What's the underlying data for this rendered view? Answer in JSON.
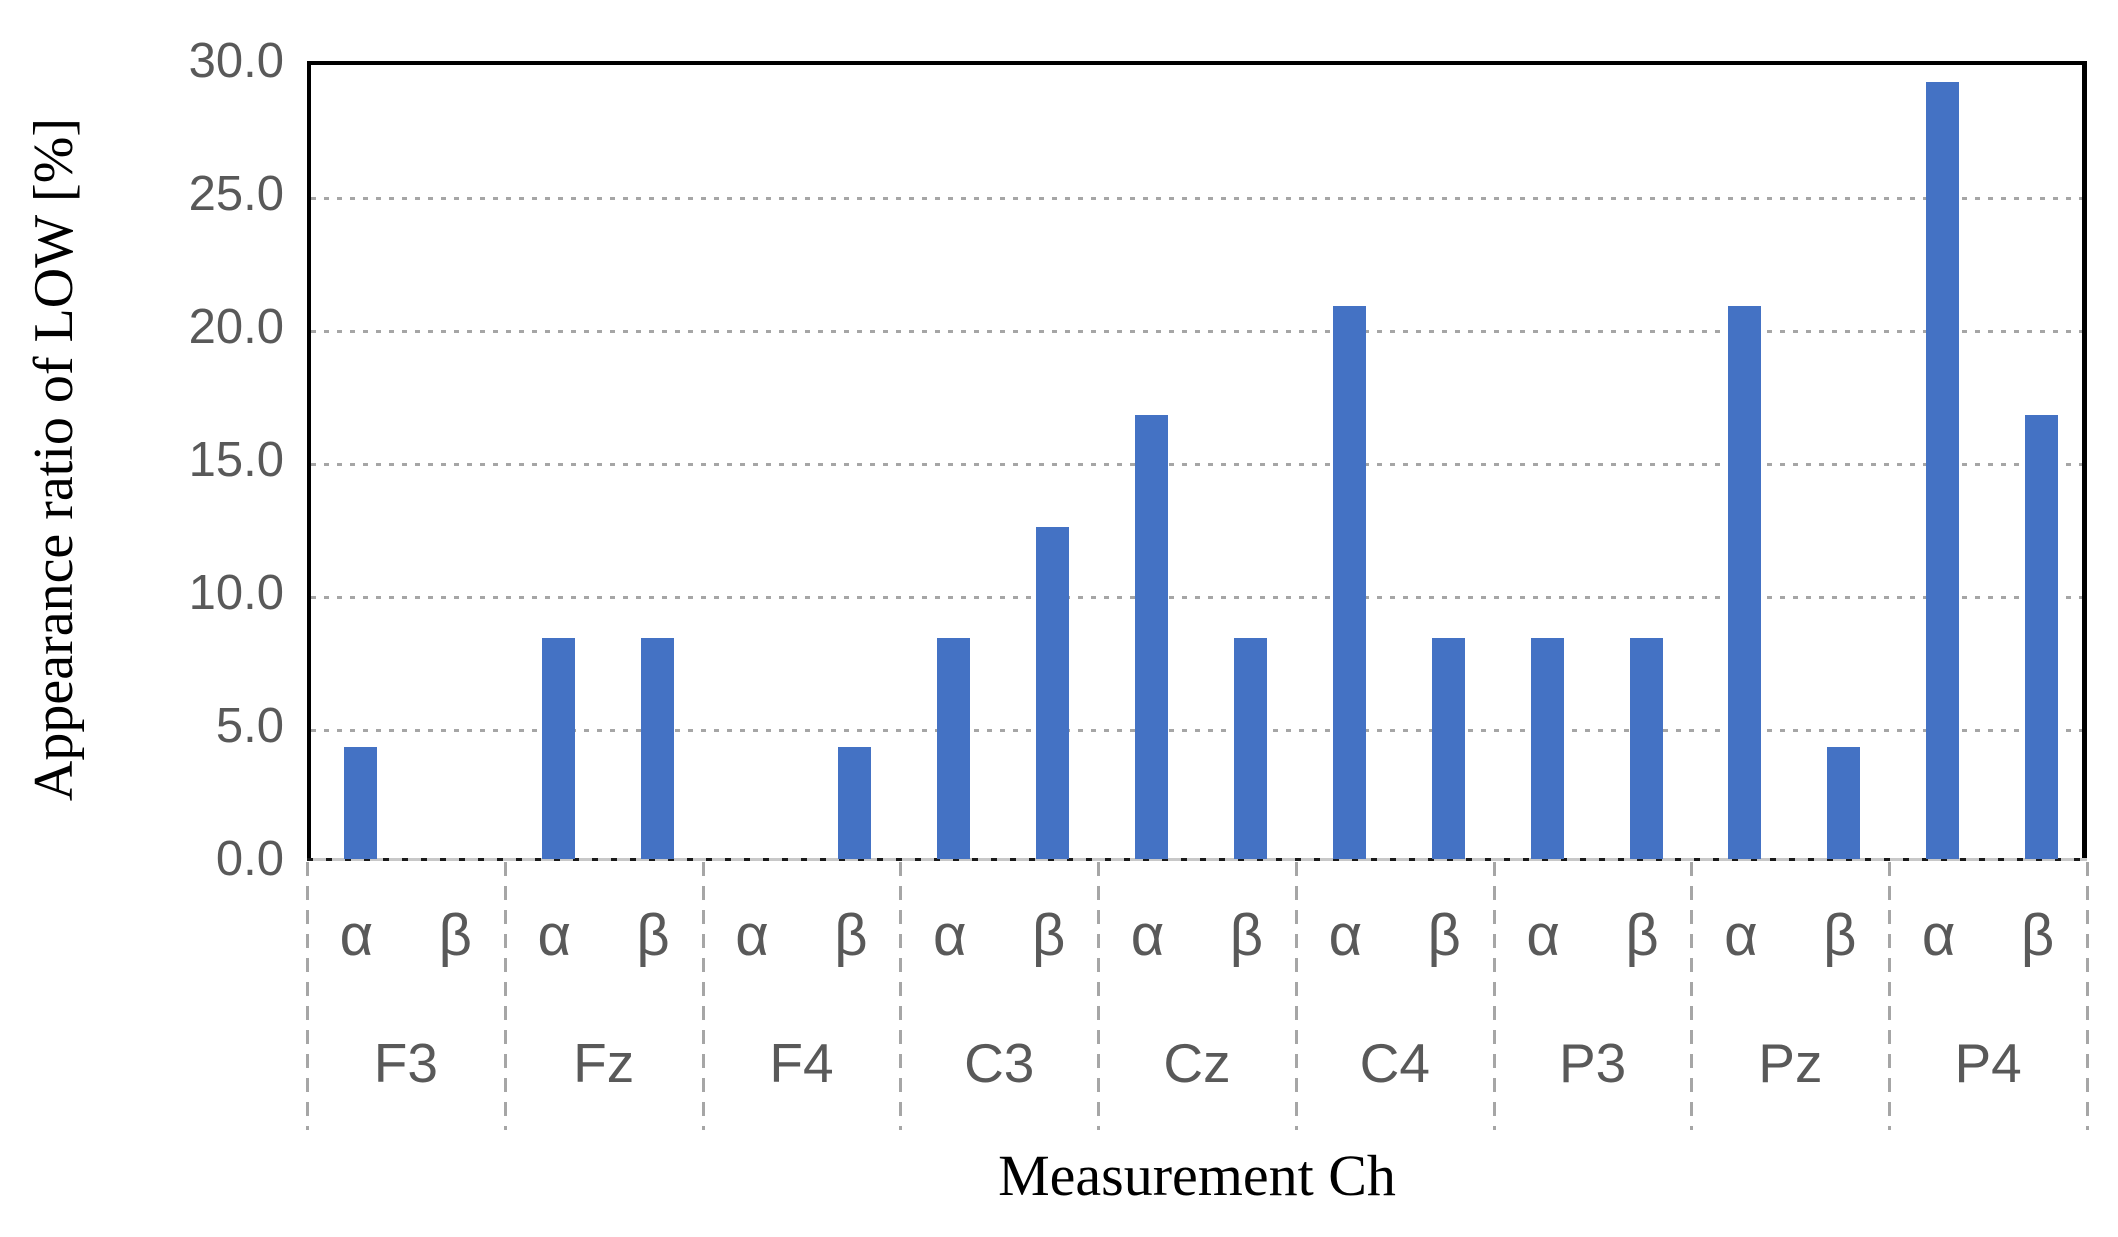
{
  "chart_data": {
    "type": "bar",
    "title": "",
    "ylabel": "Appearance ratio of LOW [%]",
    "xlabel": "Measurement Ch",
    "ylim": [
      0,
      30
    ],
    "yticks": [
      {
        "label": "30.0",
        "value": 30
      },
      {
        "label": "25.0",
        "value": 25
      },
      {
        "label": "20.0",
        "value": 20
      },
      {
        "label": "15.0",
        "value": 15
      },
      {
        "label": "10.0",
        "value": 10
      },
      {
        "label": "5.0",
        "value": 5
      },
      {
        "label": "0.0",
        "value": 0
      }
    ],
    "gridline_values": [
      25,
      20,
      15,
      10,
      5
    ],
    "grid": "dotted-horizontal",
    "legend": "none",
    "categories": [
      "F3",
      "Fz",
      "F4",
      "C3",
      "Cz",
      "C4",
      "P3",
      "Pz",
      "P4"
    ],
    "sub_categories": [
      "α",
      "β"
    ],
    "series": [
      {
        "name": "α",
        "values": [
          4.2,
          8.3,
          0.0,
          8.3,
          16.7,
          20.8,
          8.3,
          20.8,
          29.2
        ]
      },
      {
        "name": "β",
        "values": [
          0.0,
          8.3,
          4.2,
          12.5,
          8.3,
          8.3,
          8.3,
          4.2,
          16.7
        ]
      }
    ],
    "colors": {
      "bar": "#4472C4",
      "tick_label": "#595959",
      "axis_title": "#000000",
      "gridline": "#A6A6A6",
      "separator": "#A6A6A6",
      "zero_line": "#1A1A1A",
      "border": "#000000"
    }
  }
}
